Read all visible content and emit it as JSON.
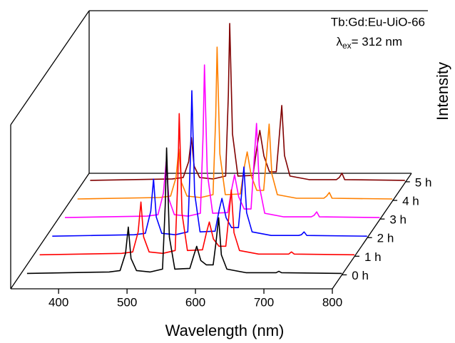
{
  "chart_data": {
    "type": "waterfall-line",
    "annotation": "Tb:Gd:Eu-UiO-66",
    "excitation": {
      "symbol": "λ",
      "subscript": "ex",
      "text": "= 312 nm"
    },
    "xlabel": "Wavelength (nm)",
    "ylabel": "Intensity",
    "xlim": [
      330,
      800
    ],
    "xticks": [
      400,
      500,
      600,
      700,
      800
    ],
    "ylim": [
      0,
      230
    ],
    "x": [
      340,
      400,
      460,
      476,
      484,
      488,
      492,
      500,
      520,
      538,
      542,
      544,
      548,
      556,
      578,
      584,
      588,
      594,
      602,
      612,
      616,
      620,
      624,
      632,
      660,
      700,
      704,
      708,
      712,
      800
    ],
    "series": [
      {
        "name": "0 h",
        "color": "#000000",
        "values": [
          2,
          3,
          4,
          6,
          30,
          67,
          23,
          6,
          4,
          8,
          98,
          178,
          53,
          8,
          9,
          28,
          40,
          20,
          14,
          14,
          44,
          80,
          28,
          8,
          3,
          3,
          3,
          5,
          3,
          2
        ]
      },
      {
        "name": "1 h",
        "color": "#ff0000",
        "values": [
          2,
          3,
          4,
          6,
          34,
          76,
          27,
          6,
          4,
          8,
          110,
          200,
          60,
          8,
          9,
          34,
          48,
          24,
          14,
          14,
          51,
          93,
          33,
          8,
          3,
          3,
          3,
          6,
          3,
          2
        ]
      },
      {
        "name": "2 h",
        "color": "#0000ff",
        "values": [
          2,
          3,
          4,
          6,
          37,
          82,
          29,
          6,
          4,
          8,
          113,
          206,
          62,
          8,
          9,
          39,
          55,
          28,
          14,
          14,
          54,
          99,
          35,
          8,
          3,
          3,
          4,
          8,
          3,
          2
        ]
      },
      {
        "name": "3 h",
        "color": "#ff00ff",
        "values": [
          2,
          3,
          4,
          6,
          36,
          80,
          28,
          6,
          4,
          8,
          119,
          216,
          65,
          8,
          9,
          43,
          62,
          31,
          14,
          14,
          74,
          134,
          47,
          8,
          3,
          3,
          5,
          10,
          3,
          2
        ]
      },
      {
        "name": "4 h",
        "color": "#ff8000",
        "values": [
          2,
          3,
          4,
          6,
          32,
          72,
          25,
          6,
          4,
          8,
          118,
          215,
          65,
          8,
          9,
          48,
          68,
          34,
          14,
          14,
          59,
          107,
          37,
          8,
          3,
          3,
          6,
          11,
          3,
          2
        ]
      },
      {
        "name": "5 h",
        "color": "#800000",
        "values": [
          2,
          3,
          4,
          6,
          28,
          62,
          22,
          6,
          4,
          8,
          122,
          222,
          67,
          8,
          9,
          50,
          72,
          36,
          14,
          14,
          59,
          107,
          37,
          8,
          3,
          3,
          6,
          12,
          3,
          2
        ]
      }
    ]
  }
}
